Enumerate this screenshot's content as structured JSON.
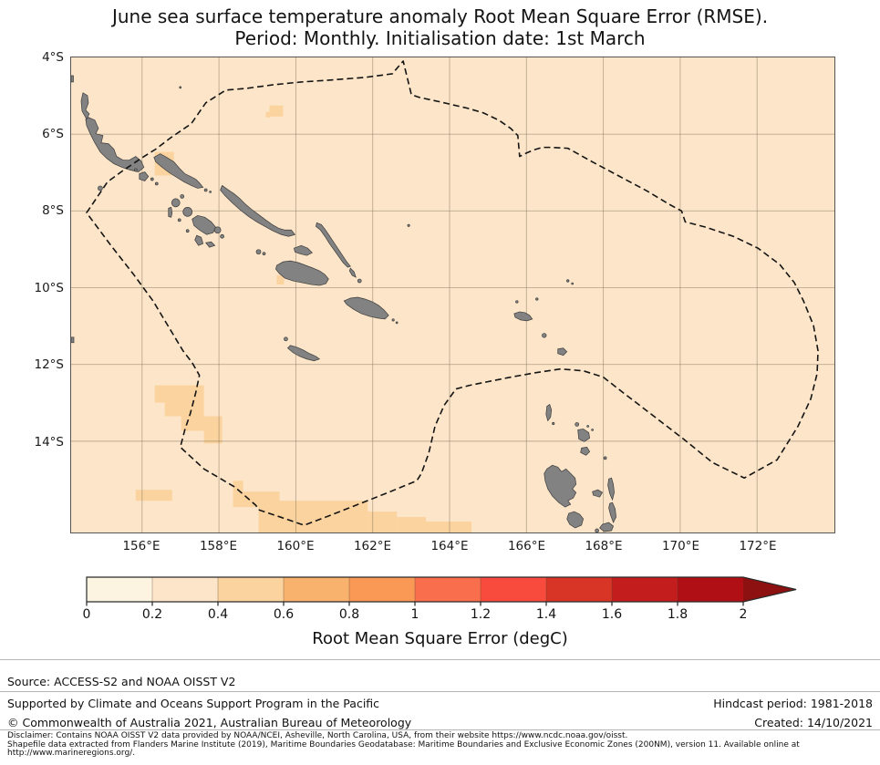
{
  "title": {
    "line1": "June sea surface temperature anomaly Root Mean Square Error (RMSE).",
    "line2": "Period: Monthly. Initialisation date: 1st March"
  },
  "map": {
    "y_ticks": [
      "4°S",
      "6°S",
      "8°S",
      "10°S",
      "12°S",
      "14°S"
    ],
    "x_ticks": [
      "156°E",
      "158°E",
      "160°E",
      "162°E",
      "164°E",
      "166°E",
      "168°E",
      "170°E",
      "172°E"
    ],
    "ocean_color": "#fce5c8",
    "anomaly_patch_color": "#fbd39e",
    "land_color": "#828282",
    "eez_boundary_color": "#141414"
  },
  "colorbar": {
    "tick_labels": [
      "0",
      "0.2",
      "0.4",
      "0.6",
      "0.8",
      "1",
      "1.2",
      "1.4",
      "1.6",
      "1.8",
      "2"
    ],
    "label": "Root Mean Square Error (degC)",
    "segment_colors": [
      "#fdf3e1",
      "#fce5c8",
      "#fbd39e",
      "#f9b26d",
      "#fa9856",
      "#f96f4d",
      "#f94b3d",
      "#d93526",
      "#c31d1d",
      "#b01015"
    ],
    "arrow_color": "#8c1110"
  },
  "footer": {
    "source": "Source: ACCESS-S2 and NOAA OISST V2",
    "supported": "Supported by Climate and Oceans Support Program in the Pacific",
    "copyright": "© Commonwealth of Australia 2021, Australian Bureau of Meteorology",
    "hindcast": "Hindcast period: 1981-2018",
    "created": "Created: 14/10/2021",
    "disclaimer_line1": "Disclaimer: Contains NOAA OISST V2 data provided by NOAA/NCEI, Asheville, North Carolina, USA, from their website https://www.ncdc.noaa.gov/oisst.",
    "disclaimer_line2": "Shapefile data extracted from Flanders Marine Institute (2019), Maritime Boundaries Geodatabase: Maritime Boundaries and Exclusive Economic Zones (200NM), version 11. Available online at",
    "disclaimer_line3": "http://www.marineregions.org/."
  },
  "chart_data": {
    "type": "heatmap",
    "title": "June sea surface temperature anomaly Root Mean Square Error (RMSE). Period: Monthly. Initialisation date: 1st March",
    "colorbar_label": "Root Mean Square Error (degC)",
    "colorbar_range": [
      0,
      2
    ],
    "colorbar_step": 0.2,
    "colorbar_extends_above_max": true,
    "lon_extent_deg_east": [
      154.2,
      174.0
    ],
    "lat_extent_deg_south": [
      4.0,
      16.3
    ],
    "x_tick_values_deg_east": [
      156,
      158,
      160,
      162,
      164,
      166,
      168,
      170,
      172
    ],
    "y_tick_values_deg_south": [
      4,
      6,
      8,
      10,
      12,
      14
    ],
    "grid": true,
    "field_summary": "RMSE is mostly in the 0.2-0.4 degC bin over the whole domain (uniform light-peach ocean), with scattered 0.4-0.6 degC patches.",
    "rmse_0p4_to_0p6_patches": [
      {
        "lon_deg_east": [
          159.3,
          159.7
        ],
        "lat_deg_south": [
          5.2,
          5.5
        ]
      },
      {
        "lon_deg_east": [
          156.3,
          156.8
        ],
        "lat_deg_south": [
          6.4,
          7.1
        ]
      },
      {
        "lon_deg_east": [
          156.3,
          158.1
        ],
        "lat_deg_south": [
          12.5,
          14.1
        ]
      },
      {
        "lon_deg_east": [
          155.8,
          156.7
        ],
        "lat_deg_south": [
          15.2,
          15.5
        ]
      },
      {
        "lon_deg_east": [
          158.3,
          164.6
        ],
        "lat_deg_south": [
          15.0,
          16.3
        ]
      },
      {
        "lon_deg_east": [
          159.4,
          159.6
        ],
        "lat_deg_south": [
          9.6,
          9.9
        ]
      }
    ],
    "overlays": [
      "gray land polygons: Bougainville, Choiseul, Santa Isabel, New Georgia group, Malaita, Guadalcanal, Makira, Rennell, Santa Cruz Islands, Banks Islands, Vanuatu chain",
      "black dashed EEZ / maritime boundary polygon"
    ]
  }
}
